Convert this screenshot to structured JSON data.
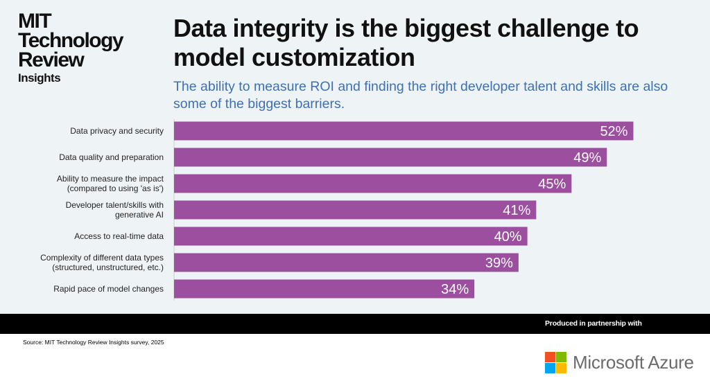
{
  "brand": {
    "line1": "MIT",
    "line2": "Technology",
    "line3": "Review",
    "line4": "Insights"
  },
  "title": "Data integrity is the biggest challenge to model customization",
  "subtitle": "The ability to measure ROI and finding the right developer talent and skills are also some of the biggest barriers.",
  "chart_data": {
    "type": "bar",
    "orientation": "horizontal",
    "categories": [
      [
        "Data privacy and security"
      ],
      [
        "Data quality and preparation"
      ],
      [
        "Ability to measure the impact",
        "(compared to using 'as is')"
      ],
      [
        "Developer talent/skills with",
        "generative AI"
      ],
      [
        "Access to real-time data"
      ],
      [
        "Complexity of different data types",
        "(structured, unstructured, etc.)"
      ],
      [
        "Rapid pace of model changes"
      ]
    ],
    "values": [
      52,
      49,
      45,
      41,
      40,
      39,
      34
    ],
    "value_labels": [
      "52%",
      "49%",
      "45%",
      "41%",
      "40%",
      "39%",
      "34%"
    ],
    "bar_color": "#9b4f9e",
    "label_color": "#ffffff",
    "grid": false
  },
  "footer": {
    "partner_text": "Produced in partnership with",
    "source": "Source: MIT Technology Review Insights survey, 2025",
    "partner_logo": "Microsoft Azure",
    "logo_colors": [
      "#f25022",
      "#7fba00",
      "#00a4ef",
      "#ffb900"
    ]
  }
}
